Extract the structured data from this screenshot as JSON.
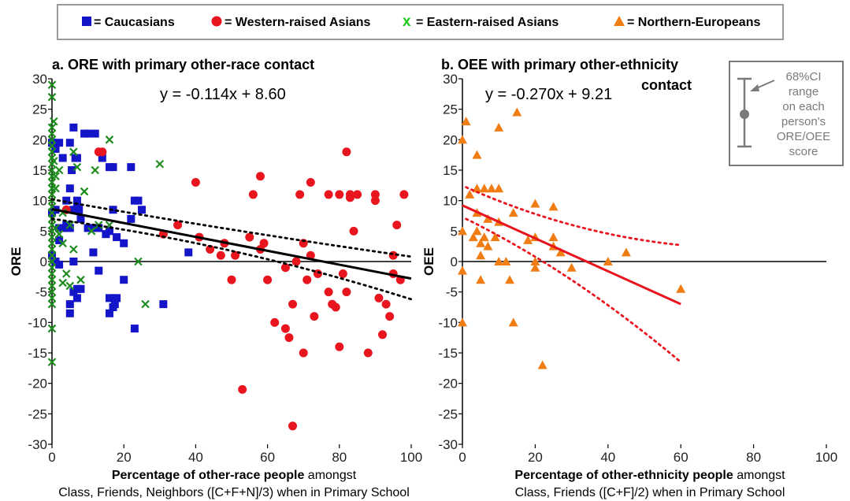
{
  "legend": {
    "items": [
      {
        "label": "= Caucasians",
        "marker": "square",
        "color": "#1414c8"
      },
      {
        "label": "= Western-raised Asians",
        "marker": "circle",
        "color": "#e8141e"
      },
      {
        "label": "= Eastern-raised Asians",
        "marker": "x",
        "color": "#1e8c1e"
      },
      {
        "label": "= Northern-Europeans",
        "marker": "triangle",
        "color": "#f07d14"
      }
    ],
    "x_glyph": "x"
  },
  "inset": {
    "line1": "68%CI",
    "line2": "range",
    "line3": "on each",
    "line4": "person's",
    "line5": "ORE/OEE",
    "line6": "score"
  },
  "chart_data": [
    {
      "type": "scatter",
      "title": "a. ORE with primary other-race contact",
      "equation": "y = -0.114x + 8.60",
      "ylabel": "ORE",
      "xlabel_bold": "Percentage of other-race people",
      "xlabel_rest": " amongst",
      "xlabel_line2": "Class, Friends, Neighbors ([C+F+N]/3) when in Primary School",
      "xlim": [
        0,
        100
      ],
      "ylim": [
        -30,
        30
      ],
      "xticks": [
        "0",
        "20",
        "40",
        "60",
        "80",
        "100"
      ],
      "yticks": [
        "30",
        "25",
        "20",
        "15",
        "10",
        "5",
        "0",
        "-5",
        "-10",
        "-15",
        "-20",
        "-25",
        "-30"
      ],
      "regression": {
        "slope": -0.114,
        "intercept": 8.6,
        "x_range": [
          0,
          100
        ],
        "color": "#000000"
      },
      "ci_band": {
        "color": "#000000",
        "upper": [
          [
            0,
            10.2
          ],
          [
            50,
            5.0
          ],
          [
            100,
            0.8
          ]
        ],
        "lower": [
          [
            0,
            7.0
          ],
          [
            50,
            3.1
          ],
          [
            100,
            -6.2
          ]
        ]
      },
      "series": [
        {
          "name": "Caucasians",
          "marker": "square",
          "color": "#1414c8",
          "points": [
            [
              0,
              19.5
            ],
            [
              1,
              18.5
            ],
            [
              2,
              19.5
            ],
            [
              3,
              17
            ],
            [
              4,
              10
            ],
            [
              5,
              19.5
            ],
            [
              5.5,
              15
            ],
            [
              6,
              22
            ],
            [
              6.5,
              17
            ],
            [
              7,
              17
            ],
            [
              9,
              21
            ],
            [
              10,
              21
            ],
            [
              12,
              21
            ],
            [
              14,
              17
            ],
            [
              16,
              15.5
            ],
            [
              17,
              15.5
            ],
            [
              22,
              15.5
            ],
            [
              23,
              10
            ],
            [
              24,
              10
            ],
            [
              25,
              8.5
            ],
            [
              0,
              8
            ],
            [
              1,
              8.5
            ],
            [
              2,
              5.5
            ],
            [
              3,
              5.5
            ],
            [
              4,
              6
            ],
            [
              5,
              5.5
            ],
            [
              6,
              8.5
            ],
            [
              7,
              9
            ],
            [
              7.5,
              8.5
            ],
            [
              8,
              7
            ],
            [
              10,
              5.5
            ],
            [
              11,
              5.5
            ],
            [
              11.5,
              1.5
            ],
            [
              13,
              5.5
            ],
            [
              15,
              4.5
            ],
            [
              16,
              5
            ],
            [
              17,
              8.5
            ],
            [
              18,
              4
            ],
            [
              20,
              3
            ],
            [
              22,
              7
            ],
            [
              0,
              1
            ],
            [
              1,
              0
            ],
            [
              2,
              -0.5
            ],
            [
              6,
              0
            ],
            [
              13,
              -1.5
            ],
            [
              16,
              -6
            ],
            [
              17,
              -6
            ],
            [
              17.5,
              -7
            ],
            [
              18,
              -6
            ],
            [
              20,
              -3
            ],
            [
              5,
              -7
            ],
            [
              5,
              -8.5
            ],
            [
              6,
              -5
            ],
            [
              7,
              -6
            ],
            [
              7,
              -4.5
            ],
            [
              8,
              -4.5
            ],
            [
              16,
              -8.5
            ],
            [
              17,
              -7.5
            ],
            [
              23,
              -11
            ],
            [
              31,
              -7
            ],
            [
              38,
              1.5
            ],
            [
              5,
              12
            ],
            [
              7,
              10
            ],
            [
              4,
              5.5
            ],
            [
              2,
              3.5
            ]
          ]
        },
        {
          "name": "Western-raised Asians",
          "marker": "circle",
          "color": "#e8141e",
          "points": [
            [
              4,
              8.5
            ],
            [
              13,
              18
            ],
            [
              14,
              18
            ],
            [
              31,
              4.5
            ],
            [
              35,
              6
            ],
            [
              40,
              13
            ],
            [
              41,
              4
            ],
            [
              44,
              2
            ],
            [
              47,
              1
            ],
            [
              48,
              3
            ],
            [
              50,
              -3
            ],
            [
              51,
              1
            ],
            [
              53,
              -21
            ],
            [
              55,
              4
            ],
            [
              56,
              11
            ],
            [
              58,
              2
            ],
            [
              58,
              14
            ],
            [
              59,
              3
            ],
            [
              60,
              -3
            ],
            [
              62,
              -10
            ],
            [
              65,
              -1
            ],
            [
              65,
              -11
            ],
            [
              66,
              -12.5
            ],
            [
              67,
              -27
            ],
            [
              67,
              -7
            ],
            [
              68,
              0
            ],
            [
              69,
              11
            ],
            [
              70,
              3
            ],
            [
              70,
              -15
            ],
            [
              71,
              -3
            ],
            [
              72,
              1
            ],
            [
              72,
              13
            ],
            [
              73,
              -9
            ],
            [
              74,
              -2
            ],
            [
              77,
              11
            ],
            [
              77,
              -5
            ],
            [
              78,
              -7
            ],
            [
              79,
              -7.5
            ],
            [
              80,
              11
            ],
            [
              80,
              -14
            ],
            [
              81,
              -2
            ],
            [
              82,
              -5
            ],
            [
              82,
              18
            ],
            [
              83,
              10.5
            ],
            [
              83,
              11
            ],
            [
              84,
              5
            ],
            [
              85,
              11
            ],
            [
              88,
              -15
            ],
            [
              90,
              10
            ],
            [
              90,
              11
            ],
            [
              91,
              -6
            ],
            [
              92,
              -12
            ],
            [
              93,
              -7
            ],
            [
              94,
              -9
            ],
            [
              95,
              -2
            ],
            [
              95,
              1
            ],
            [
              96,
              6
            ],
            [
              97,
              -3
            ],
            [
              98,
              11
            ]
          ]
        },
        {
          "name": "Eastern-raised Asians",
          "marker": "x",
          "color": "#1e8c1e",
          "points": [
            [
              0,
              29
            ],
            [
              0,
              27
            ],
            [
              0,
              22
            ],
            [
              0,
              21
            ],
            [
              0,
              20
            ],
            [
              0,
              19
            ],
            [
              0,
              18
            ],
            [
              0,
              17
            ],
            [
              0,
              16
            ],
            [
              0,
              15
            ],
            [
              0,
              14
            ],
            [
              0,
              13
            ],
            [
              0,
              12
            ],
            [
              0,
              11
            ],
            [
              0,
              10
            ],
            [
              0,
              9
            ],
            [
              0,
              8
            ],
            [
              0,
              7
            ],
            [
              0,
              6
            ],
            [
              0,
              5
            ],
            [
              0,
              4
            ],
            [
              0,
              3
            ],
            [
              0,
              2
            ],
            [
              0,
              1
            ],
            [
              0,
              0
            ],
            [
              0,
              -1
            ],
            [
              0,
              -2
            ],
            [
              0,
              -3
            ],
            [
              0,
              -4
            ],
            [
              0,
              -5
            ],
            [
              0,
              -6
            ],
            [
              0,
              -7
            ],
            [
              0,
              -11
            ],
            [
              0,
              -16.5
            ],
            [
              0.5,
              23
            ],
            [
              0.5,
              16.5
            ],
            [
              1,
              14
            ],
            [
              1,
              12
            ],
            [
              1,
              5.5
            ],
            [
              2,
              15
            ],
            [
              2,
              4.5
            ],
            [
              3,
              8
            ],
            [
              3,
              -3.5
            ],
            [
              3,
              3
            ],
            [
              4,
              -2
            ],
            [
              5,
              -4
            ],
            [
              6,
              18
            ],
            [
              6,
              2
            ],
            [
              7,
              15.5
            ],
            [
              8,
              -3
            ],
            [
              9,
              11.5
            ],
            [
              12,
              15
            ],
            [
              16,
              20
            ],
            [
              16,
              6
            ],
            [
              24,
              0
            ],
            [
              26,
              -7
            ],
            [
              30,
              16
            ],
            [
              13,
              6
            ],
            [
              11,
              5
            ],
            [
              5,
              6
            ]
          ]
        }
      ]
    },
    {
      "type": "scatter",
      "title": "b. OEE with primary other-ethnicity",
      "title_line2": "contact",
      "equation": "y = -0.270x + 9.21",
      "ylabel": "OEE",
      "xlabel_bold": "Percentage of other-ethnicity people",
      "xlabel_rest": " amongst",
      "xlabel_line2": "Class, Friends ([C+F]/2) when in Primary School",
      "xlim": [
        0,
        100
      ],
      "ylim": [
        -30,
        30
      ],
      "xticks": [
        "0",
        "20",
        "40",
        "60",
        "80",
        "100"
      ],
      "yticks": [
        "30",
        "25",
        "20",
        "15",
        "10",
        "5",
        "0",
        "-5",
        "-10",
        "-15",
        "-20",
        "-25",
        "-30"
      ],
      "regression": {
        "slope": -0.27,
        "intercept": 9.21,
        "x_range": [
          0,
          60
        ],
        "color": "#e8141e"
      },
      "ci_band": {
        "color": "#e8141e",
        "upper": [
          [
            1,
            12.2
          ],
          [
            30,
            4.5
          ],
          [
            60,
            2.7
          ]
        ],
        "lower": [
          [
            1,
            7.0
          ],
          [
            30,
            -1.5
          ],
          [
            60,
            -16.5
          ]
        ]
      },
      "series": [
        {
          "name": "Northern-Europeans",
          "marker": "triangle",
          "color": "#f07d14",
          "points": [
            [
              0,
              20
            ],
            [
              1,
              23
            ],
            [
              2,
              11
            ],
            [
              0,
              5
            ],
            [
              0,
              -1.5
            ],
            [
              0,
              -10
            ],
            [
              3,
              4
            ],
            [
              4,
              17.5
            ],
            [
              4,
              12
            ],
            [
              4,
              8
            ],
            [
              4,
              5
            ],
            [
              5,
              3
            ],
            [
              5,
              1
            ],
            [
              5,
              -3
            ],
            [
              6,
              4
            ],
            [
              6,
              12
            ],
            [
              7,
              2.5
            ],
            [
              7,
              7
            ],
            [
              8,
              12
            ],
            [
              9,
              4
            ],
            [
              10,
              0
            ],
            [
              10,
              6.5
            ],
            [
              10,
              22
            ],
            [
              10,
              12
            ],
            [
              12,
              0
            ],
            [
              13,
              -3
            ],
            [
              14,
              8
            ],
            [
              14,
              -10
            ],
            [
              15,
              24.5
            ],
            [
              18,
              3.5
            ],
            [
              20,
              9.5
            ],
            [
              20,
              0
            ],
            [
              20,
              -1
            ],
            [
              20,
              4
            ],
            [
              22,
              -17
            ],
            [
              25,
              9
            ],
            [
              25,
              4
            ],
            [
              25,
              2.5
            ],
            [
              27,
              1.5
            ],
            [
              30,
              -1
            ],
            [
              40,
              0
            ],
            [
              45,
              1.5
            ],
            [
              60,
              -4.5
            ]
          ]
        }
      ]
    }
  ]
}
